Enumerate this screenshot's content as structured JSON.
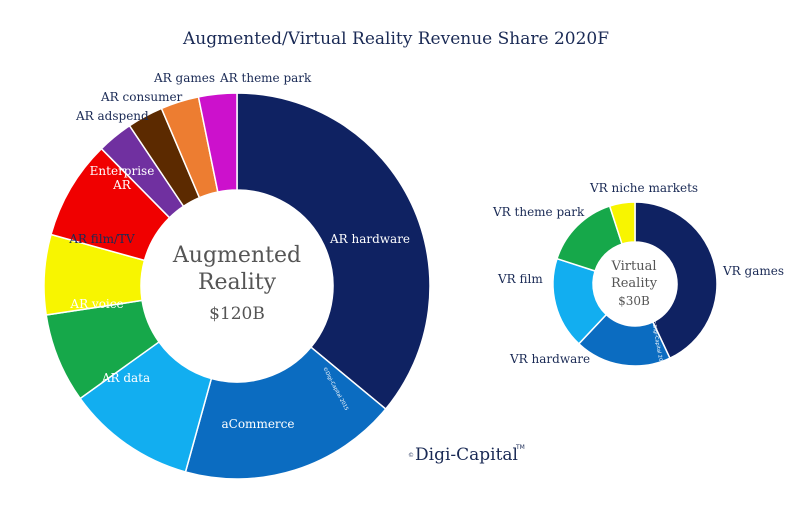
{
  "title": "Augmented/Virtual Reality Revenue Share 2020F",
  "logo": {
    "text": "Digi-Capital",
    "mark": "©",
    "tm": "TM"
  },
  "watermark": "©Digi-Capital 2015",
  "chart_data": [
    {
      "type": "pie",
      "variant": "donut",
      "center_text": [
        "Augmented",
        "Reality",
        "$120B"
      ],
      "start": "12 o'clock, clockwise",
      "slices": [
        {
          "label": "AR hardware",
          "value": 36.0,
          "color": "#0f2262"
        },
        {
          "label": "aCommerce",
          "value": 18.3,
          "color": "#0b6cc1"
        },
        {
          "label": "AR data",
          "value": 10.8,
          "color": "#12aef0"
        },
        {
          "label": "AR voice",
          "value": 7.5,
          "color": "#16a84a"
        },
        {
          "label": "AR film/TV",
          "value": 6.7,
          "color": "#f8f500"
        },
        {
          "label": "Enterprise AR",
          "value": 8.3,
          "color": "#f00000"
        },
        {
          "label": "AR adspend",
          "value": 3.0,
          "color": "#7030a0"
        },
        {
          "label": "AR consumer",
          "value": 3.0,
          "color": "#5c2a00"
        },
        {
          "label": "AR games",
          "value": 3.2,
          "color": "#ed7d31"
        },
        {
          "label": "AR theme park",
          "value": 3.2,
          "color": "#cc11cc"
        }
      ]
    },
    {
      "type": "pie",
      "variant": "donut",
      "center_text": [
        "Virtual",
        "Reality",
        "$30B"
      ],
      "start": "12 o'clock, clockwise",
      "slices": [
        {
          "label": "VR games",
          "value": 43.0,
          "color": "#0f2262"
        },
        {
          "label": "VR hardware",
          "value": 19.0,
          "color": "#0b6cc1"
        },
        {
          "label": "VR film",
          "value": 18.0,
          "color": "#12aef0"
        },
        {
          "label": "VR theme park",
          "value": 15.0,
          "color": "#16a84a"
        },
        {
          "label": "VR niche markets",
          "value": 5.0,
          "color": "#f8f500"
        }
      ]
    }
  ]
}
